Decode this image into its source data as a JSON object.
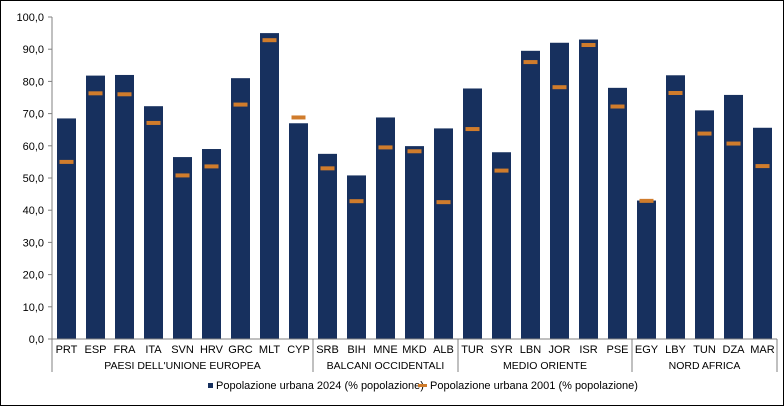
{
  "chart_data": {
    "type": "bar",
    "ylim": [
      0,
      100
    ],
    "y_ticks": [
      "0,0",
      "10,0",
      "20,0",
      "30,0",
      "40,0",
      "50,0",
      "60,0",
      "70,0",
      "80,0",
      "90,0",
      "100,0"
    ],
    "categories": [
      "PRT",
      "ESP",
      "FRA",
      "ITA",
      "SVN",
      "HRV",
      "GRC",
      "MLT",
      "CYP",
      "SRB",
      "BIH",
      "MNE",
      "MKD",
      "ALB",
      "TUR",
      "SYR",
      "LBN",
      "JOR",
      "ISR",
      "PSE",
      "EGY",
      "LBY",
      "TUN",
      "DZA",
      "MAR"
    ],
    "groups": [
      {
        "name": "PAESI DELL'UNIONE EUROPEA",
        "count": 9
      },
      {
        "name": "BALCANI OCCIDENTALI",
        "count": 5
      },
      {
        "name": "MEDIO ORIENTE",
        "count": 6
      },
      {
        "name": "NORD AFRICA",
        "count": 5
      }
    ],
    "series": [
      {
        "name": "Popolazione urbana 2024 (% popolazione)",
        "mark": "bar",
        "color": "#17305e",
        "values": [
          68.5,
          81.8,
          82.0,
          72.3,
          56.5,
          59.0,
          81.0,
          95.0,
          67.0,
          57.5,
          50.8,
          68.8,
          59.9,
          65.4,
          77.8,
          58.0,
          89.5,
          92.0,
          93.0,
          78.0,
          43.0,
          81.9,
          71.0,
          75.8,
          65.6
        ]
      },
      {
        "name": "Popolazione urbana 2001 (% popolazione)",
        "mark": "dash",
        "color": "#d07c2c",
        "values": [
          55.0,
          76.3,
          76.0,
          67.1,
          50.8,
          53.6,
          72.8,
          92.8,
          68.8,
          53.0,
          42.8,
          59.5,
          58.3,
          42.5,
          65.2,
          52.3,
          86.0,
          78.2,
          91.3,
          72.2,
          42.9,
          76.4,
          63.8,
          60.7,
          53.7
        ]
      }
    ],
    "legend_position": "bottom",
    "grid": false
  }
}
